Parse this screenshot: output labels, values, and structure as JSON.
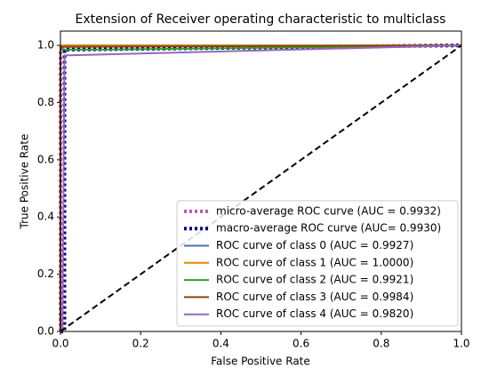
{
  "chart_data": {
    "type": "line",
    "title": "Extension of Receiver operating characteristic to multiclass",
    "xlabel": "False Positive Rate",
    "ylabel": "True Positive Rate",
    "xlim": [
      0,
      1
    ],
    "ylim": [
      0,
      1.05
    ],
    "xticks": [
      {
        "value": 0,
        "label": "0.0"
      },
      0.2,
      0.4,
      0.6,
      0.8,
      {
        "value": 1,
        "label": "1.0"
      }
    ],
    "yticks": [
      {
        "value": 0,
        "label": "0.0"
      },
      0.2,
      0.4,
      0.6,
      0.8,
      {
        "value": 1,
        "label": "1.0"
      }
    ],
    "legend": "lower right",
    "series": [
      {
        "name": "micro-average ROC curve (AUC = 0.9932)",
        "color": "#c05aa8",
        "linestyle": "dotted",
        "x": [
          0,
          0,
          0.01,
          1
        ],
        "values": [
          0,
          0.98,
          0.99,
          1
        ]
      },
      {
        "name": "macro-average ROC curve (AUC= 0.9930)",
        "color": "#000080",
        "linestyle": "dotted",
        "x": [
          0,
          0.01,
          0.01,
          1
        ],
        "values": [
          0,
          0,
          0.985,
          1
        ]
      },
      {
        "name": "ROC curve of class 0 (AUC = 0.9927)",
        "color": "#4c72b0",
        "linestyle": "solid",
        "x": [
          0,
          0,
          0.01,
          1
        ],
        "values": [
          0,
          0.99,
          1,
          1
        ]
      },
      {
        "name": "ROC curve of class 1 (AUC = 1.0000)",
        "color": "#dd8800",
        "linestyle": "solid",
        "x": [
          0,
          0,
          1
        ],
        "values": [
          0,
          1,
          1
        ]
      },
      {
        "name": "ROC curve of class 2 (AUC = 0.9921)",
        "color": "#2ca02c",
        "linestyle": "solid",
        "x": [
          0,
          0,
          0.1,
          1
        ],
        "values": [
          0,
          0.985,
          0.985,
          1
        ]
      },
      {
        "name": "ROC curve of class 3 (AUC = 0.9984)",
        "color": "#8b4513",
        "linestyle": "solid",
        "x": [
          0,
          0,
          1
        ],
        "values": [
          0,
          0.995,
          1
        ]
      },
      {
        "name": "ROC curve of class 4 (AUC = 0.9820)",
        "color": "#9467bd",
        "linestyle": "solid",
        "x": [
          0,
          0.005,
          0.01,
          1
        ],
        "values": [
          0,
          0,
          0.965,
          1
        ]
      }
    ],
    "diagonal": {
      "color": "#000000",
      "x": [
        0,
        1
      ],
      "values": [
        0,
        1
      ]
    }
  }
}
